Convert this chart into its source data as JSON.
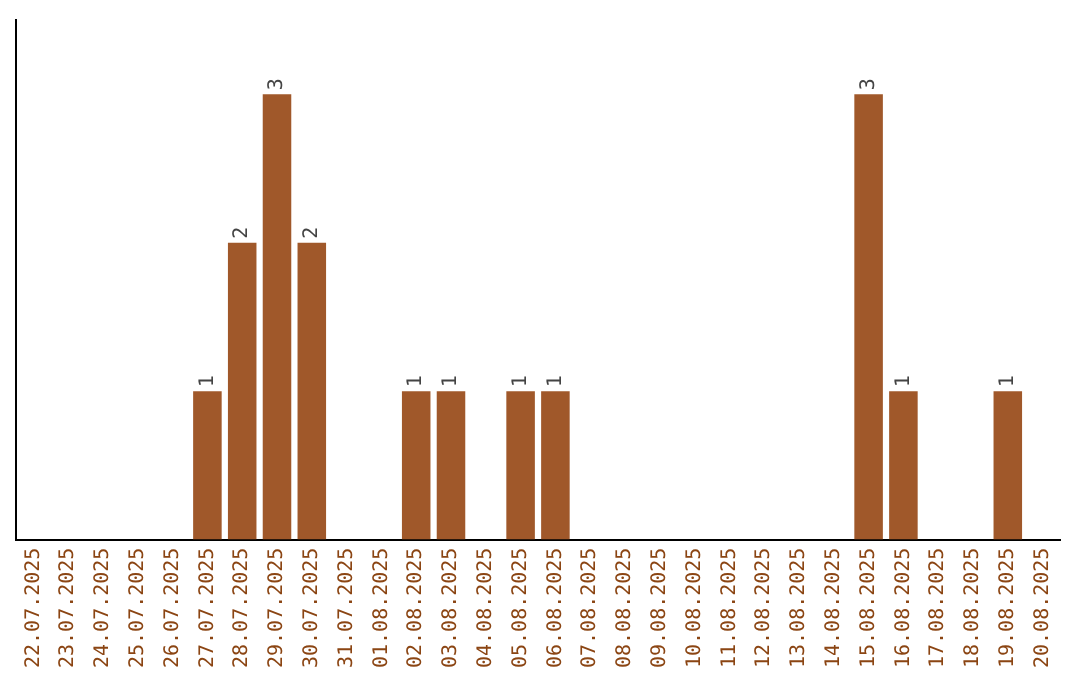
{
  "chart_data": {
    "type": "bar",
    "categories": [
      "22.07.2025",
      "23.07.2025",
      "24.07.2025",
      "25.07.2025",
      "26.07.2025",
      "27.07.2025",
      "28.07.2025",
      "29.07.2025",
      "30.07.2025",
      "31.07.2025",
      "01.08.2025",
      "02.08.2025",
      "03.08.2025",
      "04.08.2025",
      "05.08.2025",
      "06.08.2025",
      "07.08.2025",
      "08.08.2025",
      "09.08.2025",
      "10.08.2025",
      "11.08.2025",
      "12.08.2025",
      "13.08.2025",
      "14.08.2025",
      "15.08.2025",
      "16.08.2025",
      "17.08.2025",
      "18.08.2025",
      "19.08.2025",
      "20.08.2025"
    ],
    "values": [
      0,
      0,
      0,
      0,
      0,
      1,
      2,
      3,
      2,
      0,
      0,
      1,
      1,
      0,
      1,
      1,
      0,
      0,
      0,
      0,
      0,
      0,
      0,
      0,
      3,
      1,
      0,
      0,
      1,
      0
    ],
    "value_labels": [
      null,
      null,
      null,
      null,
      null,
      "1",
      "2",
      "3",
      "2",
      null,
      null,
      "1",
      "1",
      null,
      "1",
      "1",
      null,
      null,
      null,
      null,
      null,
      null,
      null,
      null,
      "3",
      "1",
      null,
      null,
      "1",
      null
    ],
    "color": "#a0582a",
    "tick_labels": "x",
    "grid": false,
    "legend": false
  }
}
